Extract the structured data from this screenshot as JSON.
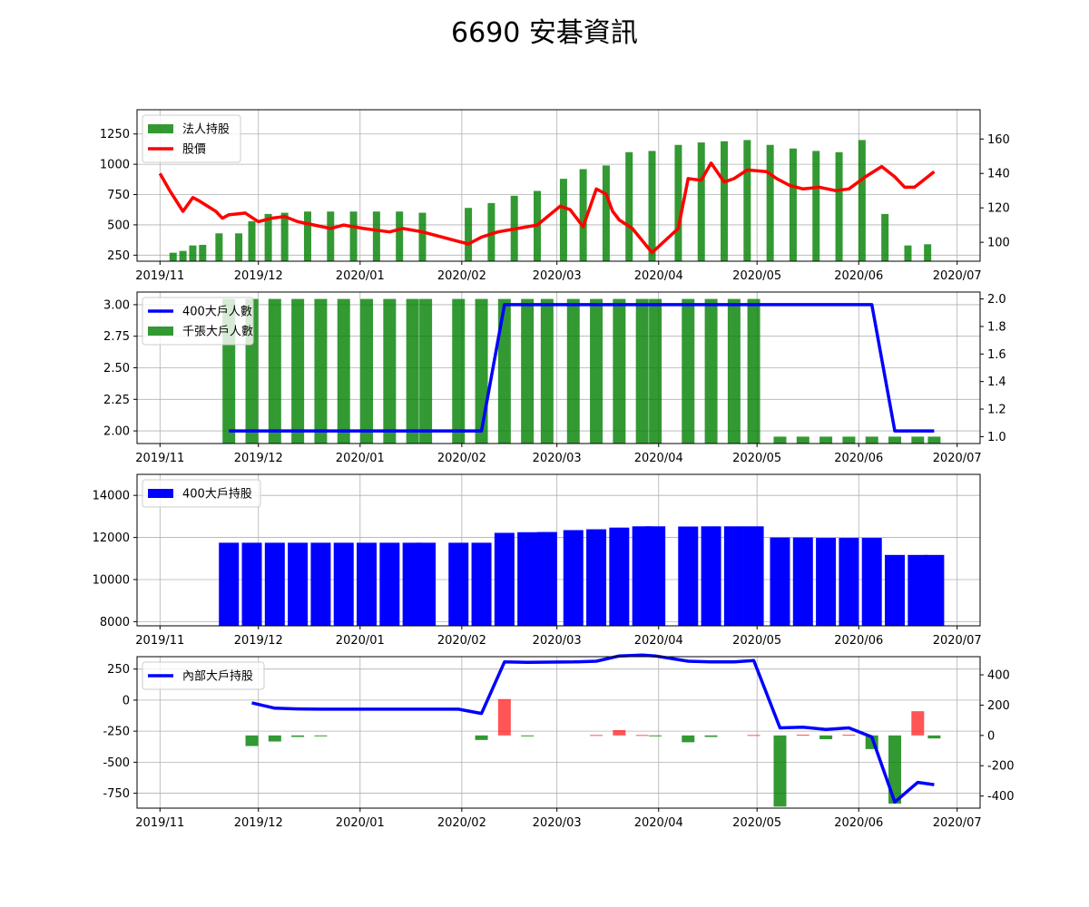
{
  "figure": {
    "title": "6690 安碁資訊",
    "colors": {
      "green": "#007f00",
      "red": "#ff0000",
      "blue": "#0000ff",
      "bar_red": "#ff2b2b",
      "grid": "#b0b0b0"
    }
  },
  "chart_data": [
    {
      "type": "bar",
      "name": "panel-1",
      "xaxis": {
        "range": [
          "2019-10-25",
          "2020-07-08"
        ],
        "ticks": [
          "2019-11-01",
          "2019-12-01",
          "2020-01-01",
          "2020-02-01",
          "2020-03-01",
          "2020-04-01",
          "2020-05-01",
          "2020-06-01",
          "2020-07-01"
        ],
        "tick_labels": [
          "2019/11",
          "2019/12",
          "2020/01",
          "2020/02",
          "2020/03",
          "2020/04",
          "2020/05",
          "2020/06",
          "2020/07"
        ]
      },
      "ylim_left": [
        200,
        1450
      ],
      "yticks_left": [
        250,
        500,
        750,
        1000,
        1250
      ],
      "ylim_right": [
        89,
        177
      ],
      "yticks_right": [
        100,
        120,
        140,
        160
      ],
      "legend": [
        "法人持股",
        "股價"
      ],
      "series_bars": {
        "name": "法人持股",
        "x": [
          "2019-11-05",
          "2019-11-08",
          "2019-11-11",
          "2019-11-14",
          "2019-11-19",
          "2019-11-25",
          "2019-11-29",
          "2019-12-04",
          "2019-12-09",
          "2019-12-16",
          "2019-12-23",
          "2019-12-30",
          "2020-01-06",
          "2020-01-13",
          "2020-01-20",
          "2020-02-03",
          "2020-02-10",
          "2020-02-17",
          "2020-02-24",
          "2020-03-03",
          "2020-03-09",
          "2020-03-16",
          "2020-03-23",
          "2020-03-30",
          "2020-04-07",
          "2020-04-14",
          "2020-04-21",
          "2020-04-28",
          "2020-05-05",
          "2020-05-12",
          "2020-05-19",
          "2020-05-26",
          "2020-06-02",
          "2020-06-09",
          "2020-06-16",
          "2020-06-22"
        ],
        "values": [
          270,
          285,
          330,
          335,
          430,
          430,
          530,
          590,
          600,
          610,
          610,
          610,
          610,
          610,
          600,
          640,
          680,
          740,
          780,
          880,
          960,
          990,
          1100,
          1110,
          1160,
          1180,
          1190,
          1200,
          1160,
          1130,
          1110,
          1100,
          1200,
          590,
          330,
          340
        ]
      },
      "series_line": {
        "name": "股價",
        "x": [
          "2019-11-01",
          "2019-11-04",
          "2019-11-08",
          "2019-11-11",
          "2019-11-13",
          "2019-11-18",
          "2019-11-20",
          "2019-11-22",
          "2019-11-27",
          "2019-12-01",
          "2019-12-05",
          "2019-12-09",
          "2019-12-13",
          "2019-12-18",
          "2019-12-23",
          "2019-12-27",
          "2020-01-02",
          "2020-01-06",
          "2020-01-10",
          "2020-01-14",
          "2020-01-20",
          "2020-02-03",
          "2020-02-07",
          "2020-02-12",
          "2020-02-18",
          "2020-02-24",
          "2020-03-02",
          "2020-03-05",
          "2020-03-09",
          "2020-03-13",
          "2020-03-16",
          "2020-03-18",
          "2020-03-20",
          "2020-03-24",
          "2020-03-30",
          "2020-04-07",
          "2020-04-10",
          "2020-04-14",
          "2020-04-17",
          "2020-04-21",
          "2020-04-24",
          "2020-04-28",
          "2020-05-04",
          "2020-05-07",
          "2020-05-11",
          "2020-05-15",
          "2020-05-20",
          "2020-05-25",
          "2020-05-29",
          "2020-06-03",
          "2020-06-08",
          "2020-06-12",
          "2020-06-15",
          "2020-06-18",
          "2020-06-22",
          "2020-06-24"
        ],
        "values": [
          140,
          130,
          118,
          126,
          124,
          118,
          114,
          116,
          117,
          112,
          114,
          115,
          112,
          110,
          108,
          110,
          108,
          107,
          106,
          108,
          106,
          99,
          103,
          106,
          108,
          110,
          121,
          119,
          109,
          131,
          128,
          118,
          113,
          108,
          94,
          108,
          137,
          136,
          146,
          135,
          137,
          142,
          141,
          137,
          133,
          131,
          132,
          130,
          131,
          138,
          144,
          138,
          132,
          132,
          138,
          141
        ]
      }
    },
    {
      "type": "bar",
      "name": "panel-2",
      "xaxis": {
        "range": [
          "2019-10-25",
          "2020-07-08"
        ]
      },
      "ylim_left": [
        1.9,
        3.1
      ],
      "yticks_left": [
        "2.00",
        "2.25",
        "2.50",
        "2.75",
        "3.00"
      ],
      "ylim_right": [
        0.95,
        2.05
      ],
      "yticks_right": [
        "1.0",
        "1.2",
        "1.4",
        "1.6",
        "1.8",
        "2.0"
      ],
      "legend": [
        "400大戶人數",
        "千張大戶人數"
      ],
      "series_bars": {
        "name": "千張大戶人數",
        "x": [
          "2019-11-22",
          "2019-11-29",
          "2019-12-06",
          "2019-12-13",
          "2019-12-20",
          "2019-12-27",
          "2020-01-03",
          "2020-01-10",
          "2020-01-17",
          "2020-01-21",
          "2020-01-31",
          "2020-02-07",
          "2020-02-14",
          "2020-02-21",
          "2020-02-27",
          "2020-03-06",
          "2020-03-13",
          "2020-03-20",
          "2020-03-27",
          "2020-03-31",
          "2020-04-10",
          "2020-04-17",
          "2020-04-24",
          "2020-04-30",
          "2020-05-08",
          "2020-05-15",
          "2020-05-22",
          "2020-05-29",
          "2020-06-05",
          "2020-06-12",
          "2020-06-19",
          "2020-06-24"
        ],
        "values": [
          2,
          2,
          2,
          2,
          2,
          2,
          2,
          2,
          2,
          2,
          2,
          2,
          2,
          2,
          2,
          2,
          2,
          2,
          2,
          2,
          2,
          2,
          2,
          2,
          1,
          1,
          1,
          1,
          1,
          1,
          1,
          1
        ]
      },
      "series_line": {
        "name": "400大戶人數",
        "x": [
          "2019-11-22",
          "2020-01-31",
          "2020-02-07",
          "2020-02-14",
          "2020-06-05",
          "2020-06-12",
          "2020-06-24"
        ],
        "values": [
          2,
          2,
          2,
          3,
          3,
          2,
          2
        ]
      }
    },
    {
      "type": "bar",
      "name": "panel-3",
      "xaxis": {
        "range": [
          "2019-10-25",
          "2020-07-08"
        ]
      },
      "ylim_left": [
        7800,
        15000
      ],
      "yticks_left": [
        8000,
        10000,
        12000,
        14000
      ],
      "legend": [
        "400大戶持股"
      ],
      "series_bars": {
        "name": "400大戶持股",
        "x": [
          "2019-11-22",
          "2019-11-29",
          "2019-12-06",
          "2019-12-13",
          "2019-12-20",
          "2019-12-27",
          "2020-01-03",
          "2020-01-10",
          "2020-01-17",
          "2020-01-21",
          "2020-01-31",
          "2020-02-07",
          "2020-02-14",
          "2020-02-21",
          "2020-02-27",
          "2020-03-06",
          "2020-03-13",
          "2020-03-20",
          "2020-03-27",
          "2020-03-31",
          "2020-04-10",
          "2020-04-17",
          "2020-04-24",
          "2020-04-30",
          "2020-05-08",
          "2020-05-15",
          "2020-05-22",
          "2020-05-29",
          "2020-06-05",
          "2020-06-12",
          "2020-06-19",
          "2020-06-24"
        ],
        "values": [
          11750,
          11750,
          11750,
          11750,
          11750,
          11750,
          11750,
          11750,
          11750,
          11750,
          11750,
          11750,
          12220,
          12250,
          12260,
          12350,
          12390,
          12470,
          12530,
          12530,
          12520,
          12530,
          12530,
          12530,
          12000,
          12000,
          11980,
          11980,
          11980,
          11170,
          11170,
          11170
        ]
      }
    },
    {
      "type": "bar",
      "name": "panel-4",
      "xaxis": {
        "range": [
          "2019-10-25",
          "2020-07-08"
        ]
      },
      "ylim_left": [
        -870,
        350
      ],
      "yticks_left": [
        -750,
        -500,
        -250,
        0,
        250
      ],
      "ylim_right": [
        -480,
        520
      ],
      "yticks_right": [
        -400,
        -200,
        0,
        200,
        400
      ],
      "legend": [
        "內部大戶持股"
      ],
      "series_bars": {
        "name": "change",
        "x": [
          "2019-11-29",
          "2019-12-06",
          "2019-12-13",
          "2019-12-20",
          "2020-02-07",
          "2020-02-14",
          "2020-02-21",
          "2020-03-13",
          "2020-03-20",
          "2020-03-27",
          "2020-03-31",
          "2020-04-10",
          "2020-04-17",
          "2020-04-30",
          "2020-05-08",
          "2020-05-15",
          "2020-05-22",
          "2020-05-29",
          "2020-06-05",
          "2020-06-12",
          "2020-06-19",
          "2020-06-24"
        ],
        "values": [
          -70,
          -40,
          -10,
          -5,
          -30,
          240,
          -5,
          3,
          35,
          3,
          -5,
          -45,
          -10,
          3,
          -470,
          5,
          -25,
          5,
          -90,
          -450,
          160,
          -20
        ]
      },
      "series_line": {
        "name": "內部大戶持股",
        "x": [
          "2019-11-29",
          "2019-12-06",
          "2019-12-13",
          "2019-12-20",
          "2020-01-03",
          "2020-01-17",
          "2020-01-31",
          "2020-02-07",
          "2020-02-14",
          "2020-02-21",
          "2020-03-06",
          "2020-03-13",
          "2020-03-20",
          "2020-03-27",
          "2020-03-31",
          "2020-04-10",
          "2020-04-17",
          "2020-04-24",
          "2020-04-30",
          "2020-05-08",
          "2020-05-15",
          "2020-05-22",
          "2020-05-29",
          "2020-06-05",
          "2020-06-12",
          "2020-06-19",
          "2020-06-24"
        ],
        "values": [
          215,
          180,
          175,
          173,
          173,
          173,
          173,
          145,
          485,
          483,
          485,
          490,
          525,
          530,
          525,
          490,
          485,
          485,
          495,
          50,
          55,
          40,
          50,
          -10,
          -440,
          -310,
          -325
        ]
      }
    }
  ]
}
